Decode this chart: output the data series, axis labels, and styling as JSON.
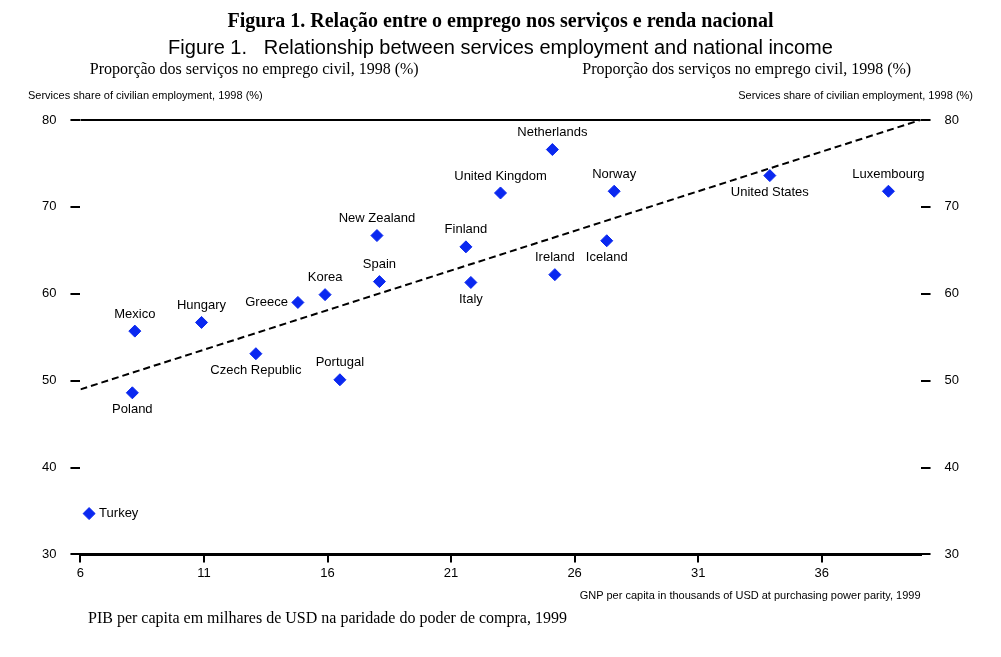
{
  "chart_data": {
    "type": "scatter",
    "title": "Figura 1. Relação entre o emprego nos serviços e renda nacional",
    "subtitle": "Figure 1.   Relationship between services employment and national income",
    "xlabel": "GNP per capita in thousands of USD at purchasing power parity, 1999",
    "ylabel": "Services share of civilian employment, 1998 (%)",
    "y2label": "Services share of civilian employment, 1998 (%)",
    "xlim": [
      6,
      40
    ],
    "xticks": [
      6,
      11,
      16,
      21,
      26,
      31,
      36
    ],
    "ylim": [
      30,
      80
    ],
    "yticks": [
      30,
      40,
      50,
      60,
      70,
      80
    ],
    "y2lim": [
      30,
      80
    ],
    "y2ticks": [
      30,
      40,
      50,
      60,
      70,
      80
    ],
    "grid": false,
    "legend": false,
    "series": [
      {
        "type": "scatter",
        "color": "#0a28f0",
        "marker": "diamond",
        "x": [
          6.35,
          8.1,
          8.2,
          10.9,
          13.1,
          14.8,
          15.9,
          16.5,
          18.0,
          18.1,
          21.6,
          21.8,
          23.0,
          25.1,
          25.2,
          27.3,
          27.6,
          33.9,
          38.7
        ],
        "values": [
          34.7,
          48.6,
          55.7,
          56.7,
          53.1,
          59.0,
          59.9,
          50.1,
          66.7,
          61.4,
          65.4,
          61.3,
          71.6,
          76.6,
          62.2,
          66.1,
          71.8,
          73.6,
          71.8
        ]
      },
      {
        "type": "line",
        "color": "#000000",
        "marker": "none",
        "line_style": "dashed",
        "x": [
          6,
          40
        ],
        "values": [
          49,
          80
        ]
      }
    ],
    "annotations": [
      {
        "text": "Turkey",
        "x": 6.35,
        "y": 34.7
      },
      {
        "text": "Poland",
        "x": 8.1,
        "y": 48.6
      },
      {
        "text": "Mexico",
        "x": 8.2,
        "y": 55.7
      },
      {
        "text": "Hungary",
        "x": 10.9,
        "y": 56.7
      },
      {
        "text": "Czech Republic",
        "x": 13.1,
        "y": 53.1
      },
      {
        "text": "Greece",
        "x": 14.8,
        "y": 59.0
      },
      {
        "text": "Korea",
        "x": 15.9,
        "y": 59.9
      },
      {
        "text": "Portugal",
        "x": 16.5,
        "y": 50.1
      },
      {
        "text": "New Zealand",
        "x": 18.0,
        "y": 66.7
      },
      {
        "text": "Spain",
        "x": 18.1,
        "y": 61.4
      },
      {
        "text": "Finland",
        "x": 21.6,
        "y": 65.4
      },
      {
        "text": "Italy",
        "x": 21.8,
        "y": 61.3
      },
      {
        "text": "United Kingdom",
        "x": 23.0,
        "y": 71.6
      },
      {
        "text": "Netherlands",
        "x": 25.1,
        "y": 76.6
      },
      {
        "text": "Ireland",
        "x": 25.2,
        "y": 62.2
      },
      {
        "text": "Iceland",
        "x": 27.3,
        "y": 66.1
      },
      {
        "text": "Norway",
        "x": 27.6,
        "y": 71.8
      },
      {
        "text": "United States",
        "x": 33.9,
        "y": 73.6
      },
      {
        "text": "Luxembourg",
        "x": 38.7,
        "y": 71.8
      },
      "Proporção dos serviços no emprego civil, 1998 (%)",
      "Proporção dos serviços no emprego civil, 1998 (%)",
      "PIB per capita em milhares de USD na paridade do poder de compra, 1999"
    ]
  }
}
